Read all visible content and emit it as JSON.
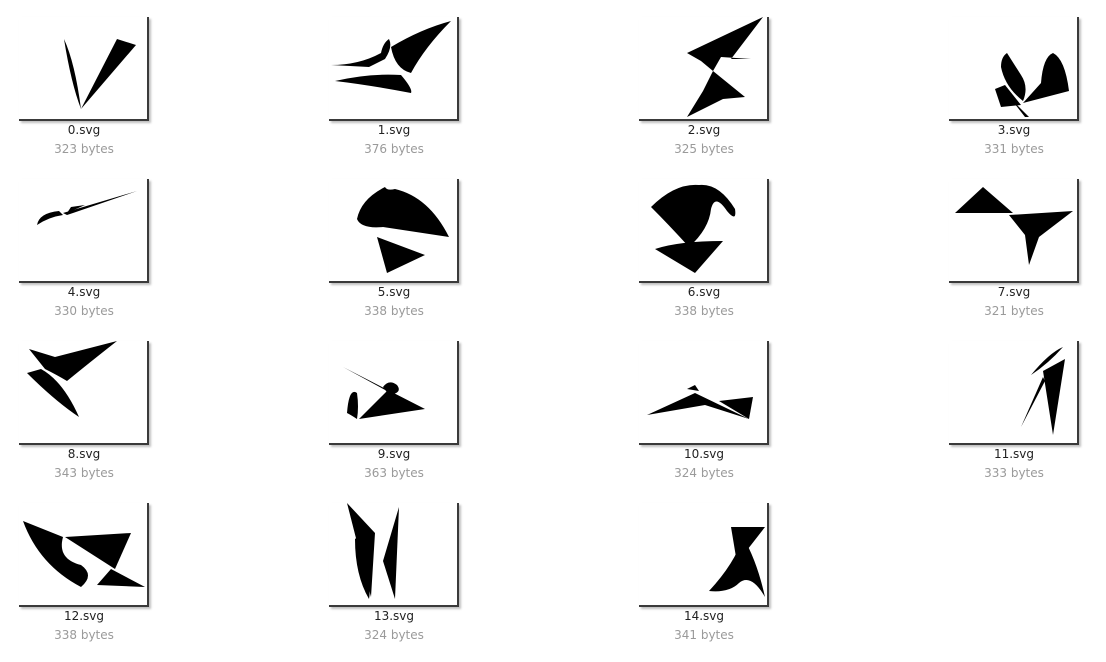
{
  "files": [
    {
      "name": "0.svg",
      "size": "323 bytes",
      "icon": "svg-thumbnail"
    },
    {
      "name": "1.svg",
      "size": "376 bytes",
      "icon": "svg-thumbnail"
    },
    {
      "name": "2.svg",
      "size": "325 bytes",
      "icon": "svg-thumbnail"
    },
    {
      "name": "3.svg",
      "size": "331 bytes",
      "icon": "svg-thumbnail"
    },
    {
      "name": "4.svg",
      "size": "330 bytes",
      "icon": "svg-thumbnail"
    },
    {
      "name": "5.svg",
      "size": "338 bytes",
      "icon": "svg-thumbnail"
    },
    {
      "name": "6.svg",
      "size": "338 bytes",
      "icon": "svg-thumbnail"
    },
    {
      "name": "7.svg",
      "size": "321 bytes",
      "icon": "svg-thumbnail"
    },
    {
      "name": "8.svg",
      "size": "343 bytes",
      "icon": "svg-thumbnail"
    },
    {
      "name": "9.svg",
      "size": "363 bytes",
      "icon": "svg-thumbnail"
    },
    {
      "name": "10.svg",
      "size": "324 bytes",
      "icon": "svg-thumbnail"
    },
    {
      "name": "11.svg",
      "size": "333 bytes",
      "icon": "svg-thumbnail"
    },
    {
      "name": "12.svg",
      "size": "338 bytes",
      "icon": "svg-thumbnail"
    },
    {
      "name": "13.svg",
      "size": "324 bytes",
      "icon": "svg-thumbnail"
    },
    {
      "name": "14.svg",
      "size": "341 bytes",
      "icon": "svg-thumbnail"
    }
  ],
  "colors": {
    "label": "#222222",
    "size_label": "#9a9a9a",
    "shape": "#000000"
  }
}
